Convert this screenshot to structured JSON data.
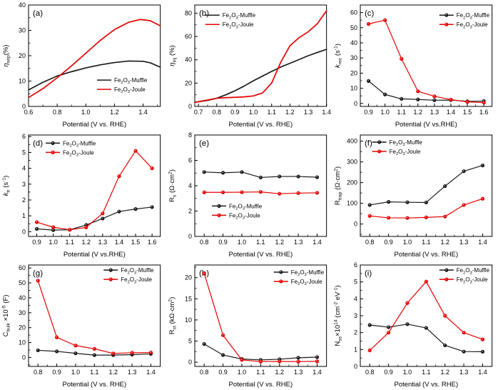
{
  "figure": {
    "background": "#ffffff",
    "axis_color": "#000000",
    "series_colors": {
      "muffle": "#1a1a1a",
      "joule": "#e60000"
    },
    "legend_names": {
      "muffle": [
        [
          "n",
          "Fe"
        ],
        [
          "sub",
          "2"
        ],
        [
          "n",
          "O"
        ],
        [
          "sub",
          "3"
        ],
        [
          "n",
          "-Muffle"
        ]
      ],
      "joule": [
        [
          "n",
          "Fe"
        ],
        [
          "sub",
          "2"
        ],
        [
          "n",
          "O"
        ],
        [
          "sub",
          "3"
        ],
        [
          "n",
          "-Joule"
        ]
      ]
    }
  },
  "chart_data": [
    {
      "id": "a",
      "tag": "(a)",
      "type": "line",
      "markers": false,
      "xlabel": "Potential (V vs. RHE)",
      "ylabel": [
        [
          "i",
          "η"
        ],
        [
          "sub",
          "sep"
        ],
        [
          "n",
          "(%)"
        ]
      ],
      "xlim": [
        0.6,
        1.52
      ],
      "ylim": [
        0,
        40
      ],
      "xticks": [
        0.6,
        0.8,
        1.0,
        1.2,
        1.4
      ],
      "xtick_labels": [
        "0.6",
        "0.8",
        "1.0",
        "1.2",
        "1.4"
      ],
      "yticks": [
        0,
        10,
        20,
        30,
        40
      ],
      "ytick_labels": [
        "0",
        "10",
        "20",
        "30",
        "40"
      ],
      "legend_pos": [
        0.52,
        0.74
      ],
      "series": [
        {
          "key": "muffle",
          "x": [
            0.6,
            0.7,
            0.8,
            0.9,
            1.0,
            1.1,
            1.2,
            1.3,
            1.4,
            1.45,
            1.52
          ],
          "y": [
            6.5,
            9.5,
            12.0,
            13.7,
            15.2,
            16.4,
            17.3,
            17.9,
            17.8,
            17.2,
            15.5
          ]
        },
        {
          "key": "joule",
          "x": [
            0.6,
            0.7,
            0.8,
            0.9,
            1.0,
            1.1,
            1.2,
            1.3,
            1.38,
            1.45,
            1.52
          ],
          "y": [
            3.5,
            7.0,
            11.3,
            16.0,
            21.0,
            26.0,
            30.3,
            33.2,
            34.3,
            33.8,
            31.8
          ]
        }
      ]
    },
    {
      "id": "b",
      "tag": "(b)",
      "type": "line",
      "markers": false,
      "xlabel": "Potential (V vs. RHE)",
      "ylabel": [
        [
          "i",
          "η"
        ],
        [
          "sub",
          "inj"
        ],
        [
          "n",
          " (%)"
        ]
      ],
      "xlim": [
        0.68,
        1.4
      ],
      "ylim": [
        0,
        87
      ],
      "xticks": [
        0.7,
        0.8,
        0.9,
        1.0,
        1.1,
        1.2,
        1.3,
        1.4
      ],
      "xtick_labels": [
        "0.7",
        "0.8",
        "0.9",
        "1.0",
        "1.1",
        "1.2",
        "1.3",
        "1.4"
      ],
      "yticks": [
        0,
        20,
        40,
        60,
        80
      ],
      "ytick_labels": [
        "0",
        "20",
        "40",
        "60",
        "80"
      ],
      "legend_pos": [
        0.08,
        0.1
      ],
      "series": [
        {
          "key": "muffle",
          "x": [
            0.68,
            0.75,
            0.8,
            0.85,
            0.9,
            0.95,
            1.0,
            1.05,
            1.1,
            1.15,
            1.2,
            1.25,
            1.3,
            1.35,
            1.4
          ],
          "y": [
            3.5,
            5.2,
            7.0,
            10.0,
            13.5,
            17.5,
            22.0,
            26.0,
            30.0,
            33.8,
            37.0,
            40.2,
            43.5,
            46.3,
            49.0
          ]
        },
        {
          "key": "joule",
          "x": [
            0.68,
            0.75,
            0.8,
            0.85,
            0.9,
            0.95,
            1.0,
            1.05,
            1.1,
            1.15,
            1.2,
            1.25,
            1.3,
            1.35,
            1.4
          ],
          "y": [
            3.5,
            5.5,
            7.0,
            7.5,
            7.8,
            8.2,
            9.0,
            11.5,
            20.0,
            38.0,
            52.0,
            59.0,
            64.0,
            71.0,
            82.0
          ]
        }
      ]
    },
    {
      "id": "c",
      "tag": "(c)",
      "type": "line",
      "markers": true,
      "xlabel": "Potential (V vs.RHE)",
      "ylabel": [
        [
          "i",
          "k"
        ],
        [
          "sub",
          "rec"
        ],
        [
          "n",
          " (s"
        ],
        [
          "sup",
          "-1"
        ],
        [
          "n",
          ")"
        ]
      ],
      "xlim": [
        0.85,
        1.65
      ],
      "ylim": [
        -2,
        65
      ],
      "xticks": [
        0.9,
        1.0,
        1.1,
        1.2,
        1.3,
        1.4,
        1.5,
        1.6
      ],
      "xtick_labels": [
        "0.9",
        "1.0",
        "1.1",
        "1.2",
        "1.3",
        "1.4",
        "1.5",
        "1.6"
      ],
      "yticks": [
        0,
        10,
        20,
        30,
        40,
        50,
        60
      ],
      "ytick_labels": [
        "0",
        "10",
        "20",
        "30",
        "40",
        "50",
        "60"
      ],
      "legend_pos": [
        0.6,
        0.1
      ],
      "series": [
        {
          "key": "muffle",
          "x": [
            0.9,
            1.0,
            1.1,
            1.2,
            1.3,
            1.4,
            1.5,
            1.6
          ],
          "y": [
            14.8,
            5.9,
            3.0,
            2.6,
            2.1,
            2.2,
            1.4,
            1.5
          ]
        },
        {
          "key": "joule",
          "x": [
            0.9,
            1.0,
            1.1,
            1.2,
            1.3,
            1.4,
            1.5,
            1.6
          ],
          "y": [
            52.5,
            55.0,
            29.5,
            8.0,
            4.7,
            2.5,
            1.0,
            0.5
          ]
        }
      ]
    },
    {
      "id": "d",
      "tag": "(d)",
      "type": "line",
      "markers": true,
      "xlabel": "Potential (V vs.RHE)",
      "ylabel": [
        [
          "i",
          "k"
        ],
        [
          "sub",
          "tr"
        ],
        [
          "n",
          " (s"
        ],
        [
          "sup",
          "-1"
        ],
        [
          "n",
          ")"
        ]
      ],
      "xlim": [
        0.85,
        1.65
      ],
      "ylim": [
        -0.3,
        6.1
      ],
      "xticks": [
        0.9,
        1.0,
        1.1,
        1.2,
        1.3,
        1.4,
        1.5,
        1.6
      ],
      "xtick_labels": [
        "0.9",
        "1.0",
        "1.1",
        "1.2",
        "1.3",
        "1.4",
        "1.5",
        "1.6"
      ],
      "yticks": [
        0,
        1,
        2,
        3,
        4,
        5,
        6
      ],
      "ytick_labels": [
        "0",
        "1",
        "2",
        "3",
        "4",
        "5",
        "6"
      ],
      "legend_pos": [
        0.13,
        0.08
      ],
      "series": [
        {
          "key": "muffle",
          "x": [
            0.9,
            1.0,
            1.1,
            1.2,
            1.3,
            1.4,
            1.5,
            1.6
          ],
          "y": [
            0.18,
            0.1,
            0.12,
            0.42,
            0.83,
            1.27,
            1.43,
            1.55
          ]
        },
        {
          "key": "joule",
          "x": [
            0.9,
            1.0,
            1.1,
            1.2,
            1.3,
            1.4,
            1.5,
            1.6
          ],
          "y": [
            0.6,
            0.28,
            0.12,
            0.27,
            1.15,
            3.5,
            5.1,
            4.0
          ]
        }
      ]
    },
    {
      "id": "e",
      "tag": "(e)",
      "type": "line",
      "markers": true,
      "xlabel": "Potential (V vs. RHE)",
      "ylabel": [
        [
          "n",
          "R"
        ],
        [
          "sub",
          "s"
        ],
        [
          "n",
          " (Ω·cm"
        ],
        [
          "sup",
          "2"
        ],
        [
          "n",
          ")"
        ]
      ],
      "xlim": [
        0.75,
        1.45
      ],
      "ylim": [
        0,
        8
      ],
      "xticks": [
        0.8,
        0.9,
        1.0,
        1.1,
        1.2,
        1.3,
        1.4
      ],
      "xtick_labels": [
        "0.8",
        "0.9",
        "1.0",
        "1.1",
        "1.2",
        "1.3",
        "1.4"
      ],
      "yticks": [
        0,
        2,
        4,
        6,
        8
      ],
      "ytick_labels": [
        "0",
        "2",
        "4",
        "6",
        "8"
      ],
      "legend_pos": [
        0.13,
        0.7
      ],
      "series": [
        {
          "key": "muffle",
          "x": [
            0.8,
            0.9,
            1.0,
            1.1,
            1.2,
            1.3,
            1.4
          ],
          "y": [
            5.08,
            5.02,
            5.08,
            4.65,
            4.73,
            4.73,
            4.67
          ]
        },
        {
          "key": "joule",
          "x": [
            0.8,
            0.9,
            1.0,
            1.1,
            1.2,
            1.3,
            1.4
          ],
          "y": [
            3.48,
            3.48,
            3.49,
            3.51,
            3.37,
            3.42,
            3.44
          ]
        }
      ]
    },
    {
      "id": "f",
      "tag": "(f)",
      "type": "line",
      "markers": true,
      "xlabel": "Potential (V vs. RHE)",
      "ylabel": [
        [
          "n",
          "R"
        ],
        [
          "sub",
          "trap"
        ],
        [
          "n",
          " (Ω·cm"
        ],
        [
          "sup",
          "2"
        ],
        [
          "n",
          ")"
        ]
      ],
      "xlim": [
        0.75,
        1.45
      ],
      "ylim": [
        -60,
        430
      ],
      "xticks": [
        0.8,
        0.9,
        1.0,
        1.1,
        1.2,
        1.3,
        1.4
      ],
      "xtick_labels": [
        "0.8",
        "0.9",
        "1.0",
        "1.1",
        "1.2",
        "1.3",
        "1.4"
      ],
      "yticks": [
        0,
        100,
        200,
        300,
        400
      ],
      "ytick_labels": [
        "0",
        "100",
        "200",
        "300",
        "400"
      ],
      "legend_pos": [
        0.09,
        0.07
      ],
      "series": [
        {
          "key": "muffle",
          "x": [
            0.8,
            0.9,
            1.0,
            1.1,
            1.2,
            1.3,
            1.4
          ],
          "y": [
            92,
            107,
            105,
            104,
            183,
            255,
            283
          ]
        },
        {
          "key": "joule",
          "x": [
            0.8,
            0.9,
            1.0,
            1.1,
            1.2,
            1.3,
            1.4
          ],
          "y": [
            39,
            30,
            29,
            32,
            36,
            92,
            122
          ]
        }
      ]
    },
    {
      "id": "g",
      "tag": "(g)",
      "type": "line",
      "markers": true,
      "xlabel": "Potential (V vs. RHE)",
      "ylabel": [
        [
          "n",
          "C"
        ],
        [
          "sub",
          "bulk"
        ],
        [
          "n",
          " ×10"
        ],
        [
          "sup",
          "-5"
        ],
        [
          "n",
          " (F)"
        ]
      ],
      "xlim": [
        0.75,
        1.45
      ],
      "ylim": [
        -6,
        62
      ],
      "xticks": [
        0.8,
        0.9,
        1.0,
        1.1,
        1.2,
        1.3,
        1.4
      ],
      "xtick_labels": [
        "0.8",
        "0.9",
        "1.0",
        "1.1",
        "1.2",
        "1.3",
        "1.4"
      ],
      "yticks": [
        0,
        10,
        20,
        30,
        40,
        50,
        60
      ],
      "ytick_labels": [
        "0",
        "10",
        "20",
        "30",
        "40",
        "50",
        "60"
      ],
      "legend_pos": [
        0.57,
        0.05
      ],
      "series": [
        {
          "key": "muffle",
          "x": [
            0.8,
            0.9,
            1.0,
            1.1,
            1.2,
            1.3,
            1.4
          ],
          "y": [
            4.8,
            4.1,
            2.8,
            1.6,
            1.6,
            1.9,
            2.4
          ]
        },
        {
          "key": "joule",
          "x": [
            0.8,
            0.9,
            1.0,
            1.1,
            1.2,
            1.3,
            1.4
          ],
          "y": [
            51.5,
            13.5,
            8.0,
            5.8,
            2.7,
            3.2,
            3.3
          ]
        }
      ]
    },
    {
      "id": "h",
      "tag": "(h)",
      "type": "line",
      "markers": true,
      "xlabel": "Potential (V vs. RHE)",
      "ylabel": [
        [
          "n",
          "R"
        ],
        [
          "sub",
          "ct"
        ],
        [
          "n",
          " (kΩ·cm"
        ],
        [
          "sup",
          "2"
        ],
        [
          "n",
          ")"
        ]
      ],
      "xlim": [
        0.75,
        1.45
      ],
      "ylim": [
        -1,
        23
      ],
      "xticks": [
        0.8,
        0.9,
        1.0,
        1.1,
        1.2,
        1.3,
        1.4
      ],
      "xtick_labels": [
        "0.8",
        "0.9",
        "1.0",
        "1.1",
        "1.2",
        "1.3",
        "1.4"
      ],
      "yticks": [
        0,
        5,
        10,
        15,
        20
      ],
      "ytick_labels": [
        "0",
        "5",
        "10",
        "15",
        "20"
      ],
      "legend_pos": [
        0.6,
        0.07
      ],
      "series": [
        {
          "key": "muffle",
          "x": [
            0.8,
            0.9,
            1.0,
            1.1,
            1.2,
            1.3,
            1.4
          ],
          "y": [
            4.3,
            1.7,
            0.75,
            0.55,
            0.7,
            1.05,
            1.2
          ]
        },
        {
          "key": "joule",
          "x": [
            0.8,
            0.9,
            1.0,
            1.1,
            1.2,
            1.3,
            1.4
          ],
          "y": [
            21.0,
            6.4,
            0.55,
            0.15,
            0.18,
            0.15,
            0.2
          ]
        }
      ]
    },
    {
      "id": "i",
      "tag": "(i)",
      "type": "line",
      "markers": true,
      "xlabel": "Potential (V vs. RHE)",
      "ylabel": [
        [
          "n",
          "N"
        ],
        [
          "sub",
          "ss"
        ],
        [
          "n",
          "×10"
        ],
        [
          "sup",
          "14"
        ],
        [
          "n",
          " (cm"
        ],
        [
          "sup",
          "-2"
        ],
        [
          "n",
          " eV"
        ],
        [
          "sup",
          "-1"
        ],
        [
          "n",
          ")"
        ]
      ],
      "xlim": [
        0.75,
        1.45
      ],
      "ylim": [
        0,
        6
      ],
      "xticks": [
        0.8,
        0.9,
        1.0,
        1.1,
        1.2,
        1.3,
        1.4
      ],
      "xtick_labels": [
        "0.8",
        "0.9",
        "1.0",
        "1.1",
        "1.2",
        "1.3",
        "1.4"
      ],
      "yticks": [
        0,
        1,
        2,
        3,
        4,
        5,
        6
      ],
      "ytick_labels": [
        "0",
        "1",
        "2",
        "3",
        "4",
        "5",
        "6"
      ],
      "legend_pos": [
        0.6,
        0.05
      ],
      "series": [
        {
          "key": "muffle",
          "x": [
            0.8,
            0.9,
            1.0,
            1.1,
            1.2,
            1.3,
            1.4
          ],
          "y": [
            2.45,
            2.32,
            2.5,
            2.28,
            1.25,
            0.88,
            0.87
          ]
        },
        {
          "key": "joule",
          "x": [
            0.8,
            0.9,
            1.0,
            1.1,
            1.2,
            1.3,
            1.4
          ],
          "y": [
            0.95,
            2.0,
            3.75,
            5.02,
            3.0,
            2.0,
            1.6
          ]
        }
      ]
    }
  ]
}
